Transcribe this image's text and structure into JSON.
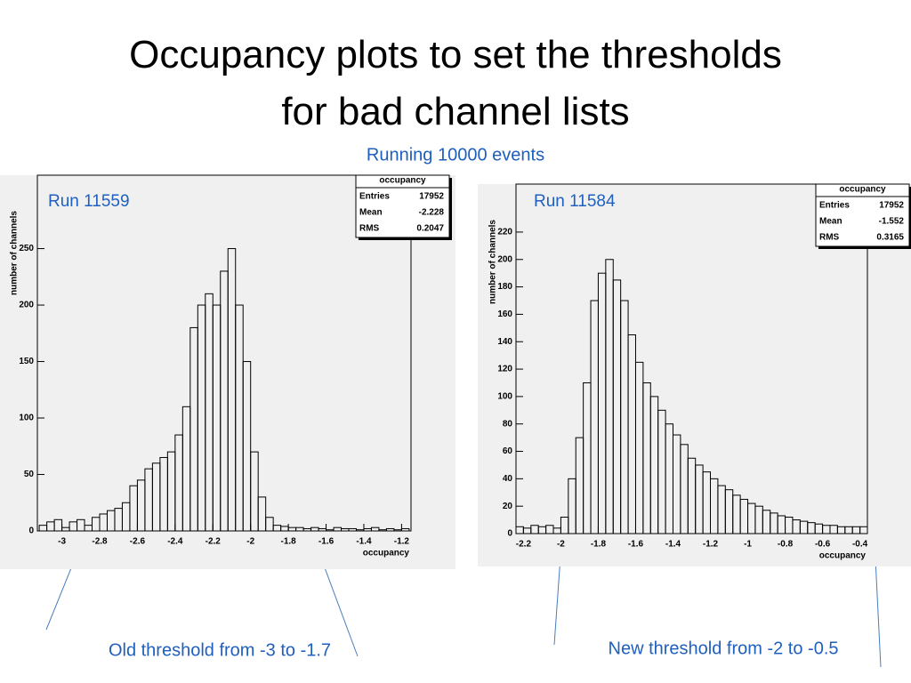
{
  "title": "Occupancy plots to set the thresholds for bad channel lists",
  "subtitle": "Running 10000  events",
  "annotations": [
    "Old threshold from -3 to -1.7",
    "New threshold from -2 to -0.5"
  ],
  "chart_data": [
    {
      "type": "histogram",
      "title": "Run 11559",
      "xlabel": "occupancy",
      "ylabel": "number of channels",
      "color": "#000000",
      "bins": [
        -3.12,
        -3.08,
        -3.04,
        -3.0,
        -2.96,
        -2.92,
        -2.88,
        -2.84,
        -2.8,
        -2.76,
        -2.72,
        -2.68,
        -2.64,
        -2.6,
        -2.56,
        -2.52,
        -2.48,
        -2.44,
        -2.4,
        -2.36,
        -2.32,
        -2.28,
        -2.24,
        -2.2,
        -2.16,
        -2.12,
        -2.08,
        -2.04,
        -2.0,
        -1.96,
        -1.92,
        -1.88,
        -1.84,
        -1.8,
        -1.76,
        -1.72,
        -1.68,
        -1.64,
        -1.6,
        -1.56,
        -1.52,
        -1.48,
        -1.44,
        -1.4,
        -1.36,
        -1.32,
        -1.28,
        -1.24,
        -1.2,
        -1.16
      ],
      "values": [
        5,
        8,
        10,
        3,
        8,
        10,
        5,
        12,
        15,
        18,
        20,
        25,
        40,
        45,
        55,
        60,
        65,
        70,
        85,
        110,
        180,
        200,
        210,
        200,
        230,
        250,
        200,
        150,
        70,
        30,
        12,
        5,
        4,
        3,
        3,
        2,
        3,
        2,
        1,
        3,
        2,
        2,
        1,
        2,
        3,
        1,
        2,
        1,
        2
      ],
      "xlim": [
        -3.13,
        -1.15
      ],
      "xticks": [
        -3,
        -2.8,
        -2.6,
        -2.4,
        -2.2,
        -2,
        -1.8,
        -1.6,
        -1.4,
        -1.2
      ],
      "ylim": [
        0,
        315
      ],
      "yticks": [
        0,
        50,
        100,
        150,
        200,
        250
      ],
      "stats": {
        "title": "occupancy",
        "rows": [
          [
            "Entries",
            17952
          ],
          [
            "Mean",
            -2.228
          ],
          [
            "RMS",
            0.2047
          ]
        ]
      }
    },
    {
      "type": "histogram",
      "title": "Run 11584",
      "xlabel": "occupancy",
      "ylabel": "number of channels",
      "color": "#000000",
      "bins": [
        -2.24,
        -2.2,
        -2.16,
        -2.12,
        -2.08,
        -2.04,
        -2.0,
        -1.96,
        -1.92,
        -1.88,
        -1.84,
        -1.8,
        -1.76,
        -1.72,
        -1.68,
        -1.64,
        -1.6,
        -1.56,
        -1.52,
        -1.48,
        -1.44,
        -1.4,
        -1.36,
        -1.32,
        -1.28,
        -1.24,
        -1.2,
        -1.16,
        -1.12,
        -1.08,
        -1.04,
        -1.0,
        -0.96,
        -0.92,
        -0.88,
        -0.84,
        -0.8,
        -0.76,
        -0.72,
        -0.68,
        -0.64,
        -0.6,
        -0.56,
        -0.52,
        -0.48,
        -0.44,
        -0.4,
        -0.36
      ],
      "values": [
        5,
        4,
        6,
        5,
        6,
        4,
        12,
        40,
        70,
        110,
        170,
        190,
        200,
        185,
        170,
        145,
        125,
        110,
        100,
        90,
        80,
        72,
        65,
        55,
        50,
        45,
        40,
        35,
        32,
        28,
        25,
        22,
        20,
        17,
        15,
        13,
        12,
        10,
        9,
        8,
        7,
        6,
        6,
        5,
        5,
        5,
        5
      ],
      "xlim": [
        -2.24,
        -0.36
      ],
      "xticks": [
        -2.2,
        -2,
        -1.8,
        -1.6,
        -1.4,
        -1.2,
        -1,
        -0.8,
        -0.6,
        -0.4
      ],
      "ylim": [
        0,
        255
      ],
      "yticks": [
        0,
        20,
        40,
        60,
        80,
        100,
        120,
        140,
        160,
        180,
        200,
        220
      ],
      "stats": {
        "title": "occupancy",
        "rows": [
          [
            "Entries",
            17952
          ],
          [
            "Mean",
            -1.552
          ],
          [
            "RMS",
            0.3165
          ]
        ]
      }
    }
  ]
}
